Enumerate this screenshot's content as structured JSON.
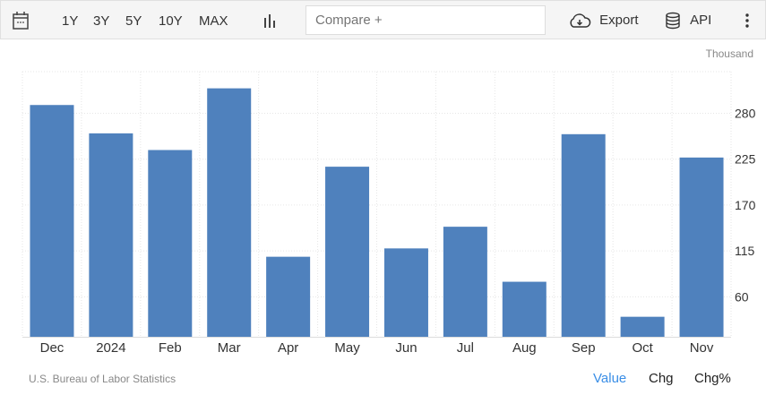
{
  "toolbar": {
    "calendar_icon": "calendar-icon",
    "ranges": [
      "1Y",
      "3Y",
      "5Y",
      "10Y",
      "MAX"
    ],
    "chart_type_icon": "bar-chart-icon",
    "compare_placeholder": "Compare +",
    "export_label": "Export",
    "api_label": "API"
  },
  "footer": {
    "source": "U.S. Bureau of Labor Statistics",
    "modes": [
      "Value",
      "Chg",
      "Chg%"
    ],
    "active_mode": "Value",
    "active_color": "#3a8ee6"
  },
  "chart_data": {
    "type": "bar",
    "unit_label": "Thousand",
    "categories": [
      "Dec",
      "2024",
      "Feb",
      "Mar",
      "Apr",
      "May",
      "Jun",
      "Jul",
      "Aug",
      "Sep",
      "Oct",
      "Nov"
    ],
    "values": [
      290,
      256,
      236,
      310,
      108,
      216,
      118,
      144,
      78,
      255,
      36,
      227
    ],
    "yticks": [
      60,
      115,
      170,
      225,
      280
    ],
    "ylim": [
      12,
      330
    ],
    "y_axis_side": "right",
    "grid": true,
    "bar_color": "#4f81bd"
  }
}
